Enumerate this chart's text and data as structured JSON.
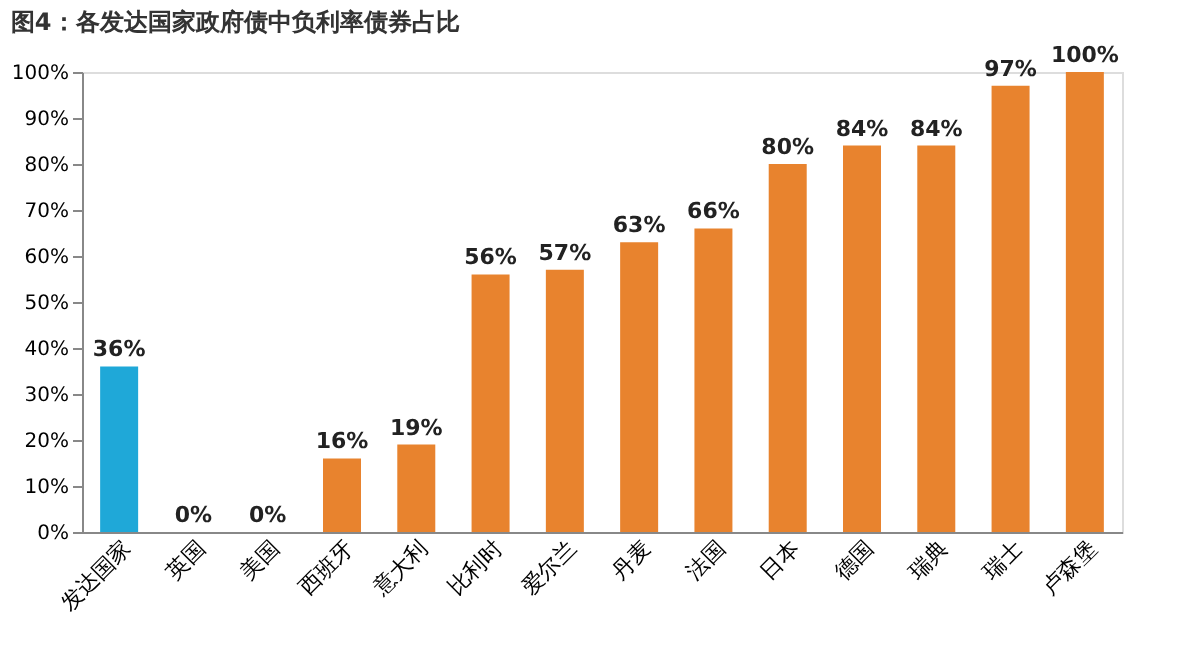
{
  "chart_data": {
    "type": "bar",
    "title": "图4：各发达国家政府债中负利率债券占比",
    "categories": [
      "发达国家",
      "英国",
      "美国",
      "西班牙",
      "意大利",
      "比利时",
      "爱尔兰",
      "丹麦",
      "法国",
      "日本",
      "德国",
      "瑞典",
      "瑞士",
      "卢森堡"
    ],
    "values": [
      36,
      0,
      0,
      16,
      19,
      56,
      57,
      63,
      66,
      80,
      84,
      84,
      97,
      100
    ],
    "value_labels": [
      "36%",
      "0%",
      "0%",
      "16%",
      "19%",
      "56%",
      "57%",
      "63%",
      "66%",
      "80%",
      "84%",
      "84%",
      "97%",
      "100%"
    ],
    "colors": [
      "#1fa8d8",
      "#e8832e",
      "#e8832e",
      "#e8832e",
      "#e8832e",
      "#e8832e",
      "#e8832e",
      "#e8832e",
      "#e8832e",
      "#e8832e",
      "#e8832e",
      "#e8832e",
      "#e8832e",
      "#e8832e"
    ],
    "ylim": [
      0,
      100
    ],
    "yticks": [
      {
        "value": 0,
        "label": "0%"
      },
      {
        "value": 10,
        "label": "10%"
      },
      {
        "value": 20,
        "label": "20%"
      },
      {
        "value": 30,
        "label": "30%"
      },
      {
        "value": 40,
        "label": "40%"
      },
      {
        "value": 50,
        "label": "50%"
      },
      {
        "value": 60,
        "label": "60%"
      },
      {
        "value": 70,
        "label": "70%"
      },
      {
        "value": 80,
        "label": "80%"
      },
      {
        "value": 90,
        "label": "90%"
      },
      {
        "value": 100,
        "label": "100%"
      }
    ],
    "grid": false
  }
}
